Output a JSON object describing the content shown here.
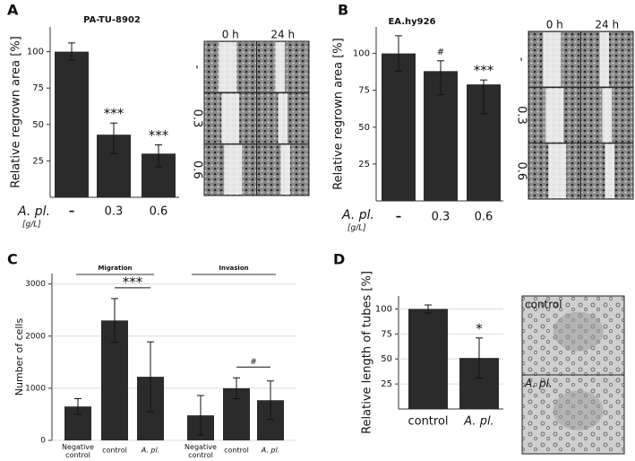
{
  "chart_data": [
    {
      "type": "bar",
      "panel": "A",
      "title": "PA-TU-8902",
      "y_label": "Relative regrown area [%]",
      "x_label": "A. pl.",
      "x_unit": "[g/L]",
      "categories": [
        "–",
        "0.3",
        "0.6"
      ],
      "values": [
        100,
        43,
        30
      ],
      "errors_minus": [
        6,
        13,
        9
      ],
      "errors_plus": [
        6,
        8,
        6
      ],
      "significance": [
        null,
        "***",
        "***"
      ],
      "color": "#2b2b2b",
      "ylim": [
        0,
        117
      ],
      "yticks": [
        25,
        50,
        75,
        100
      ],
      "grid": false,
      "image": {
        "columns": [
          "0 h",
          "24 h"
        ],
        "rows": [
          "-",
          "0.3",
          "0.6"
        ]
      }
    },
    {
      "type": "bar",
      "panel": "B",
      "title": "EA.hy926",
      "y_label": "Relative regrown area [%]",
      "x_label": "A. pl.",
      "x_unit": "[g/L]",
      "categories": [
        "–",
        "0.3",
        "0.6"
      ],
      "values": [
        100,
        88,
        79
      ],
      "errors_minus": [
        12,
        16,
        20
      ],
      "errors_plus": [
        12,
        7,
        3
      ],
      "significance": [
        null,
        "#",
        "***"
      ],
      "color": "#2b2b2b",
      "ylim": [
        0,
        118
      ],
      "yticks": [
        25,
        50,
        75,
        100
      ],
      "grid": false,
      "image": {
        "columns": [
          "0 h",
          "24 h"
        ],
        "rows": [
          "-",
          "0.3",
          "0.6"
        ]
      }
    },
    {
      "type": "bar",
      "panel": "C",
      "y_label": "Number of cells",
      "groups": [
        "Migration",
        "Invasion"
      ],
      "categories": [
        "Negative control",
        "control",
        "A. pl.",
        "Negative control",
        "control",
        "A. pl."
      ],
      "values": [
        650,
        2300,
        1220,
        480,
        1000,
        770
      ],
      "errors_minus": [
        150,
        420,
        670,
        380,
        200,
        370
      ],
      "errors_plus": [
        150,
        420,
        670,
        380,
        200,
        370
      ],
      "significance": [
        null,
        null,
        "***",
        null,
        null,
        "#"
      ],
      "color": "#2b2b2b",
      "ylim": [
        0,
        3200
      ],
      "yticks": [
        0,
        1000,
        2000,
        3000
      ],
      "grid": true
    },
    {
      "type": "bar",
      "panel": "D",
      "y_label": "Relative length of tubes [%]",
      "categories": [
        "control",
        "A. pl."
      ],
      "values": [
        100,
        51
      ],
      "errors_minus": [
        4,
        20
      ],
      "errors_plus": [
        4,
        20
      ],
      "significance": [
        null,
        "*"
      ],
      "color": "#2b2b2b",
      "ylim": [
        0,
        113
      ],
      "yticks": [
        25,
        50,
        75,
        100
      ],
      "grid": true,
      "image": {
        "rows": [
          "control",
          "A. pl."
        ]
      }
    }
  ]
}
